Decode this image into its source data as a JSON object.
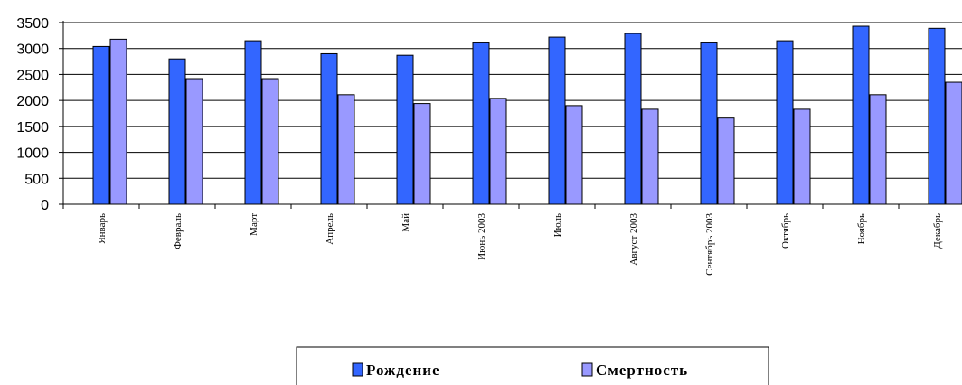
{
  "chart_data": {
    "type": "bar",
    "categories": [
      "Январь",
      "Февраль",
      "Март",
      "Апрель",
      "Май",
      "Июнь 2003",
      "Июль",
      "Август 2003",
      "Сентябрь 2003",
      "Октябрь",
      "Ноябрь",
      "Декабрь"
    ],
    "series": [
      {
        "name": "Рождение",
        "color": "#3366ff",
        "values": [
          3040,
          2800,
          3150,
          2900,
          2870,
          3110,
          3220,
          3290,
          3110,
          3150,
          3430,
          3390
        ]
      },
      {
        "name": "Смертность",
        "color": "#9999ff",
        "values": [
          3180,
          2420,
          2420,
          2110,
          1940,
          2040,
          1900,
          1830,
          1660,
          1830,
          2110,
          2350
        ]
      }
    ],
    "yticks": [
      "0",
      "500",
      "1000",
      "1500",
      "2000",
      "2500",
      "3000",
      "3500"
    ],
    "ylim": [
      0,
      3500
    ],
    "grid": true,
    "legend_position": "bottom"
  }
}
